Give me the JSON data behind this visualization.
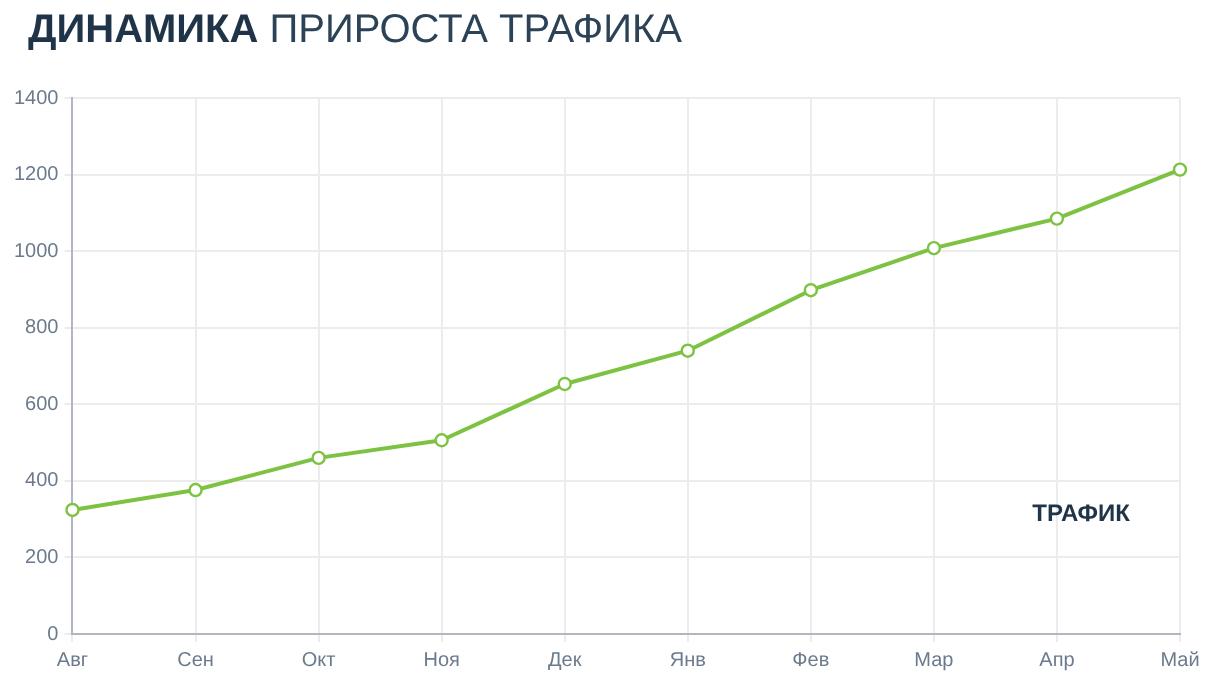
{
  "chart_data": {
    "type": "line",
    "title": "ДИНАМИКА ПРИРОСТА ТРАФИКА",
    "categories": [
      "Авг",
      "Сен",
      "Окт",
      "Ноя",
      "Дек",
      "Янв",
      "Фев",
      "Мар",
      "Апр",
      "Май"
    ],
    "series": [
      {
        "name": "ТРАФИК",
        "color": "#7dc242",
        "values": [
          324,
          376,
          460,
          506,
          653,
          740,
          898,
          1008,
          1085,
          1213
        ]
      }
    ],
    "ylim": [
      0,
      1400
    ],
    "yticks": [
      0,
      200,
      400,
      600,
      800,
      1000,
      1200,
      1400
    ],
    "grid": true,
    "legend": "bottom right",
    "marker": "circle",
    "line_style": "solid"
  }
}
